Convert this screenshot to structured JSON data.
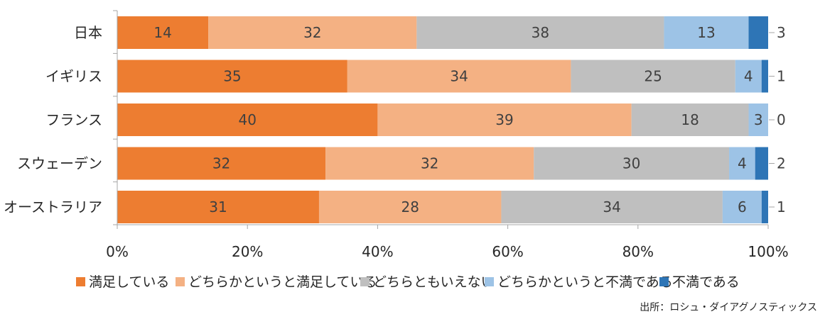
{
  "chart_data": {
    "type": "bar",
    "orientation": "horizontal",
    "stacked": true,
    "percent_stacked": true,
    "categories": [
      "日本",
      "イギリス",
      "フランス",
      "スウェーデン",
      "オーストラリア"
    ],
    "series": [
      {
        "name": "満足している",
        "color": "#ED7D31",
        "values": [
          14,
          35,
          40,
          32,
          31
        ]
      },
      {
        "name": "どちらかというと満足している",
        "color": "#F4B183",
        "values": [
          32,
          34,
          39,
          32,
          28
        ]
      },
      {
        "name": "どちらともいえない",
        "color": "#BFBFBF",
        "values": [
          38,
          25,
          18,
          30,
          34
        ]
      },
      {
        "name": "どちらかというと不満である",
        "color": "#9DC3E6",
        "values": [
          13,
          4,
          3,
          4,
          6
        ]
      },
      {
        "name": "不満である",
        "color": "#2E75B6",
        "values": [
          3,
          1,
          0,
          2,
          1
        ]
      }
    ],
    "x_tick_labels": [
      "0%",
      "20%",
      "40%",
      "60%",
      "80%",
      "100%"
    ],
    "xlim": [
      0,
      100
    ],
    "grid": false,
    "legend_position": "bottom",
    "source": "出所：ロシュ・ダイアグノスティックス"
  }
}
